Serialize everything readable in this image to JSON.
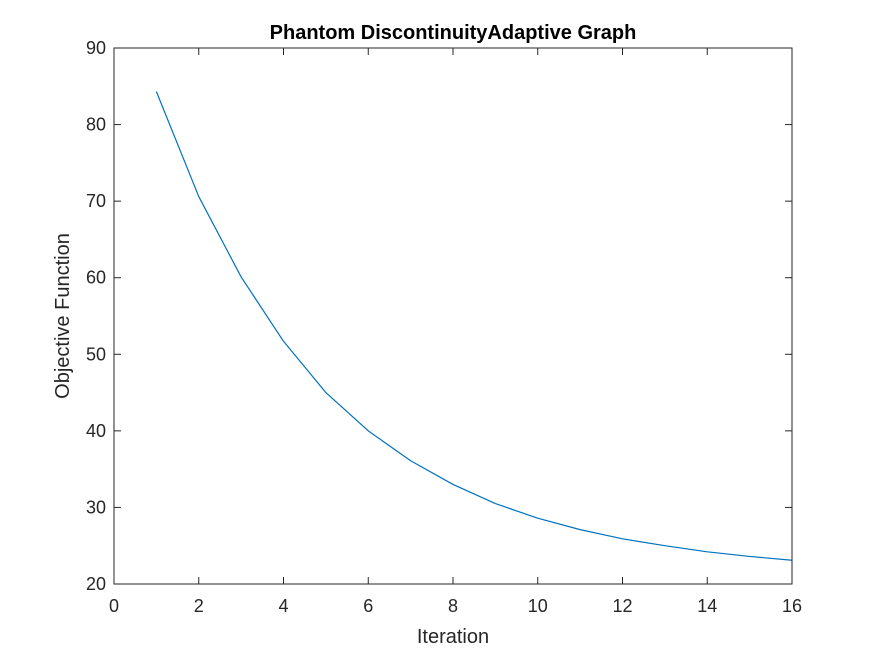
{
  "chart_data": {
    "type": "line",
    "title": "Phantom DiscontinuityAdaptive Graph",
    "xlabel": "Iteration",
    "ylabel": "Objective Function",
    "xlim": [
      0,
      16
    ],
    "ylim": [
      20,
      90
    ],
    "xticks": [
      0,
      2,
      4,
      6,
      8,
      10,
      12,
      14,
      16
    ],
    "yticks": [
      20,
      30,
      40,
      50,
      60,
      70,
      80,
      90
    ],
    "grid": false,
    "box": true,
    "series": [
      {
        "color": "#0072BD",
        "x": [
          1,
          2,
          3,
          4,
          5,
          6,
          7,
          8,
          9,
          10,
          11,
          12,
          13,
          14,
          15,
          16
        ],
        "y": [
          84.3,
          70.6,
          60.1,
          51.7,
          45.0,
          40.0,
          36.1,
          33.0,
          30.5,
          28.6,
          27.1,
          25.9,
          25.0,
          24.2,
          23.6,
          23.1
        ]
      }
    ]
  },
  "colors": {
    "axis": "#262626",
    "line": "#0072BD",
    "background": "#ffffff"
  }
}
